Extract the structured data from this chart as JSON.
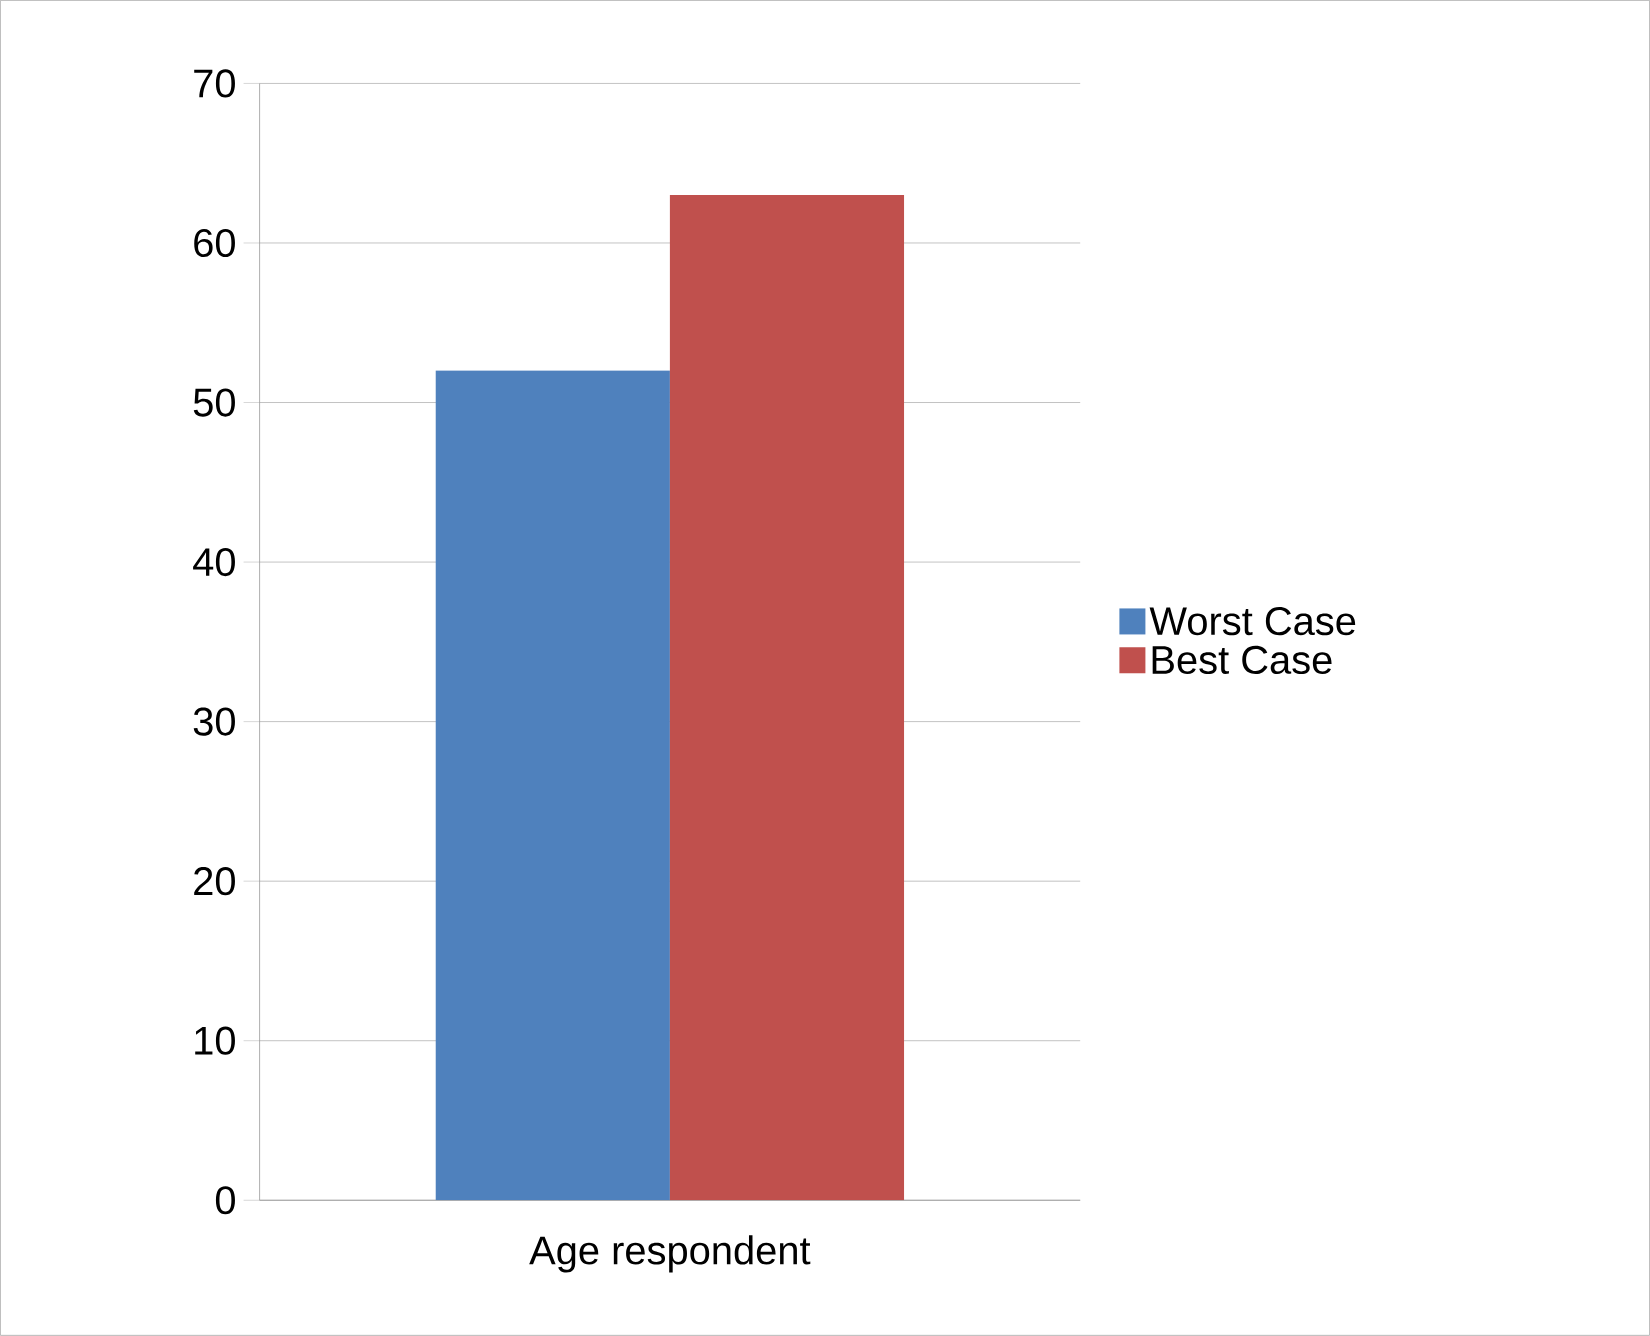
{
  "chart_data": {
    "type": "bar",
    "categories": [
      "Age respondent"
    ],
    "series": [
      {
        "name": "Worst Case",
        "color": "#4f81bd",
        "values": [
          52
        ]
      },
      {
        "name": "Best Case",
        "color": "#c0504d",
        "values": [
          63
        ]
      }
    ],
    "ylim": [
      0,
      70
    ],
    "yticks": [
      0,
      10,
      20,
      30,
      40,
      50,
      60,
      70
    ],
    "grid": "y",
    "legend": "right"
  }
}
